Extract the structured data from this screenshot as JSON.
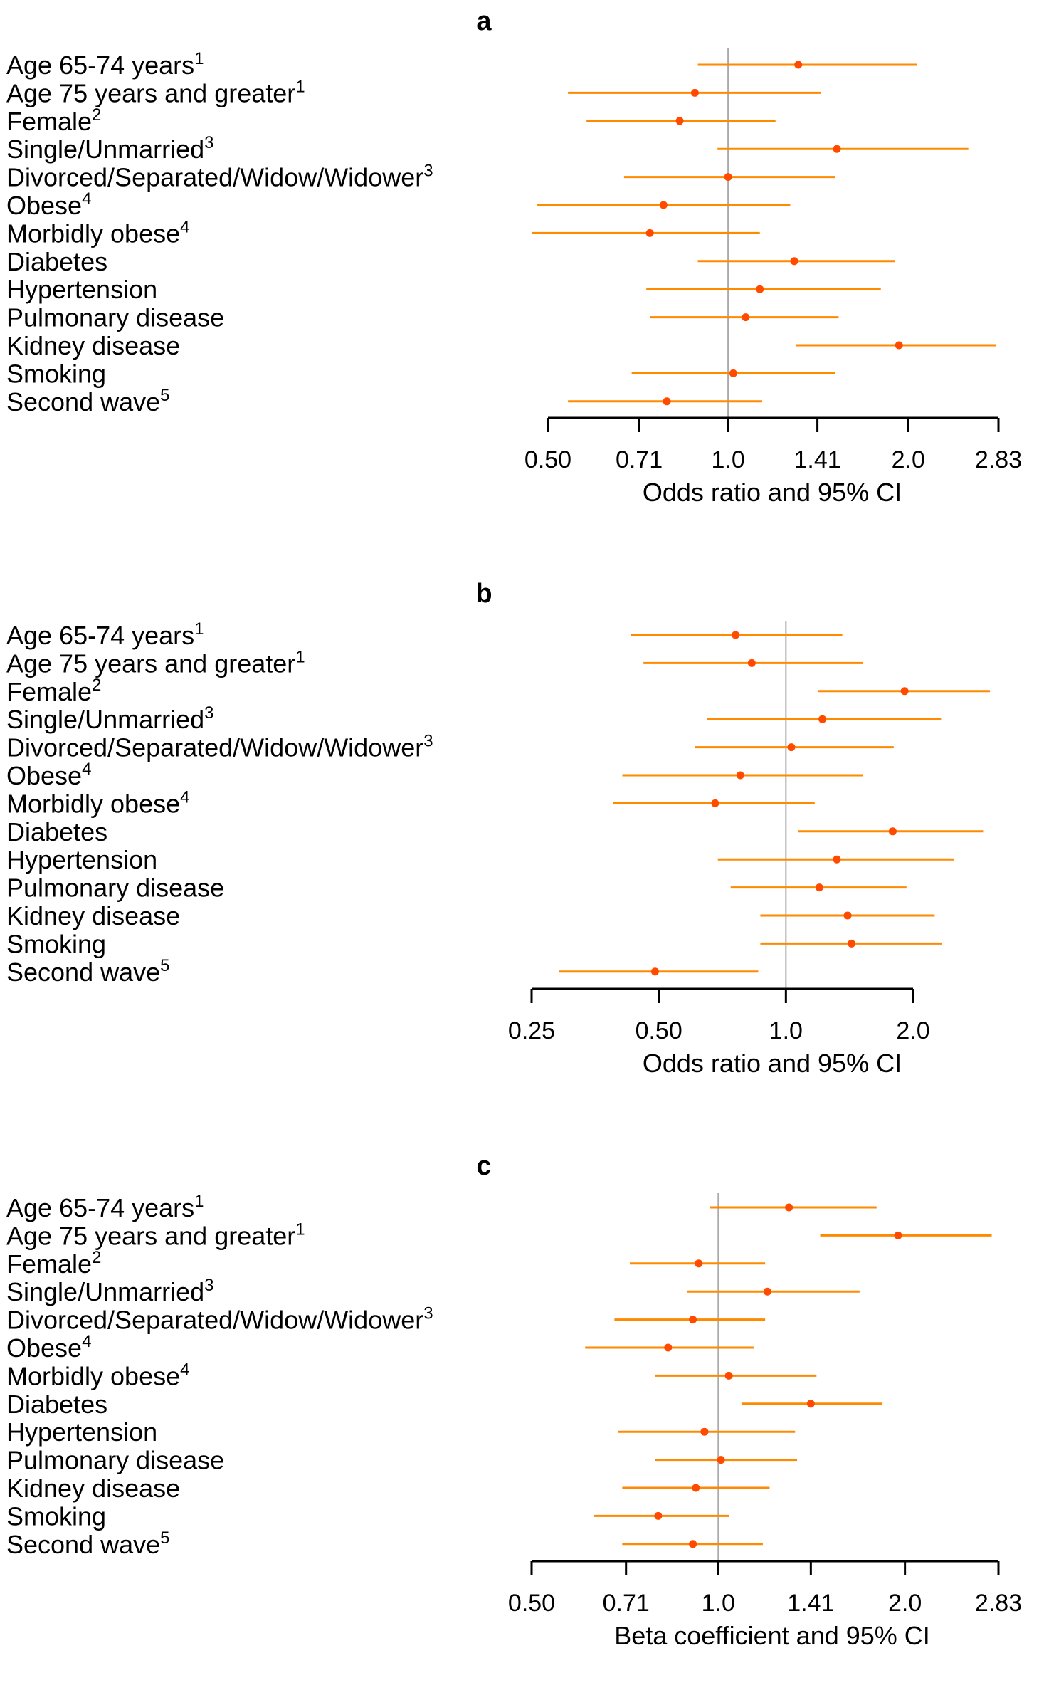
{
  "colors": {
    "ci": "#ff8a00",
    "point": "#ff4a00",
    "reference": "#aaaaaa",
    "axis": "#000000"
  },
  "chart_data": [
    {
      "panel": "a",
      "type": "scatter",
      "style": "forest-plot with 95% CI whiskers",
      "scale": "log2",
      "xlabel": "Odds ratio and 95% CI",
      "ticks": [
        0.5,
        0.71,
        1.0,
        1.41,
        2.0,
        2.83
      ],
      "tick_labels": [
        "0.50",
        "0.71",
        "1.0",
        "1.41",
        "2.0",
        "2.83"
      ],
      "xlim": [
        0.5,
        2.83
      ],
      "reference": 1.0,
      "rows": [
        {
          "label": "Age 65-74 years",
          "sup": "1",
          "estimate": 1.31,
          "lower": 0.89,
          "upper": 2.07
        },
        {
          "label": "Age 75 years and greater",
          "sup": "1",
          "estimate": 0.88,
          "lower": 0.54,
          "upper": 1.43
        },
        {
          "label": "Female",
          "sup": "2",
          "estimate": 0.83,
          "lower": 0.58,
          "upper": 1.2
        },
        {
          "label": "Single/Unmarried",
          "sup": "3",
          "estimate": 1.52,
          "lower": 0.96,
          "upper": 2.52
        },
        {
          "label": "Divorced/Separated/Widow/Widower",
          "sup": "3",
          "estimate": 1.0,
          "lower": 0.67,
          "upper": 1.51
        },
        {
          "label": "Obese",
          "sup": "4",
          "estimate": 0.78,
          "lower": 0.48,
          "upper": 1.27
        },
        {
          "label": "Morbidly obese",
          "sup": "4",
          "estimate": 0.74,
          "lower": 0.47,
          "upper": 1.13
        },
        {
          "label": "Diabetes",
          "sup": "",
          "estimate": 1.29,
          "lower": 0.89,
          "upper": 1.9
        },
        {
          "label": "Hypertension",
          "sup": "",
          "estimate": 1.13,
          "lower": 0.73,
          "upper": 1.8
        },
        {
          "label": "Pulmonary disease",
          "sup": "",
          "estimate": 1.07,
          "lower": 0.74,
          "upper": 1.53
        },
        {
          "label": "Kidney disease",
          "sup": "",
          "estimate": 1.93,
          "lower": 1.3,
          "upper": 2.8
        },
        {
          "label": "Smoking",
          "sup": "",
          "estimate": 1.02,
          "lower": 0.69,
          "upper": 1.51
        },
        {
          "label": "Second wave",
          "sup": "5",
          "estimate": 0.79,
          "lower": 0.54,
          "upper": 1.14
        }
      ]
    },
    {
      "panel": "b",
      "type": "scatter",
      "style": "forest-plot with 95% CI whiskers",
      "scale": "log2",
      "xlabel": "Odds ratio and 95% CI",
      "ticks": [
        0.25,
        0.5,
        1.0,
        2.0
      ],
      "tick_labels": [
        "0.25",
        "0.50",
        "1.0",
        "2.0"
      ],
      "xlim": [
        0.25,
        2.0
      ],
      "reference": 1.0,
      "rows": [
        {
          "label": "Age 65-74 years",
          "sup": "1",
          "estimate": 0.76,
          "lower": 0.43,
          "upper": 1.36
        },
        {
          "label": "Age 75 years and greater",
          "sup": "1",
          "estimate": 0.83,
          "lower": 0.46,
          "upper": 1.52
        },
        {
          "label": "Female",
          "sup": "2",
          "estimate": 1.91,
          "lower": 1.19,
          "upper": 3.04
        },
        {
          "label": "Single/Unmarried",
          "sup": "3",
          "estimate": 1.22,
          "lower": 0.65,
          "upper": 2.33
        },
        {
          "label": "Divorced/Separated/Widow/Widower",
          "sup": "3",
          "estimate": 1.03,
          "lower": 0.61,
          "upper": 1.8
        },
        {
          "label": "Obese",
          "sup": "4",
          "estimate": 0.78,
          "lower": 0.41,
          "upper": 1.52
        },
        {
          "label": "Morbidly obese",
          "sup": "4",
          "estimate": 0.68,
          "lower": 0.39,
          "upper": 1.17
        },
        {
          "label": "Diabetes",
          "sup": "",
          "estimate": 1.79,
          "lower": 1.07,
          "upper": 2.93
        },
        {
          "label": "Hypertension",
          "sup": "",
          "estimate": 1.32,
          "lower": 0.69,
          "upper": 2.5
        },
        {
          "label": "Pulmonary disease",
          "sup": "",
          "estimate": 1.2,
          "lower": 0.74,
          "upper": 1.93
        },
        {
          "label": "Kidney disease",
          "sup": "",
          "estimate": 1.4,
          "lower": 0.87,
          "upper": 2.25
        },
        {
          "label": "Smoking",
          "sup": "",
          "estimate": 1.43,
          "lower": 0.87,
          "upper": 2.34
        },
        {
          "label": "Second wave",
          "sup": "5",
          "estimate": 0.49,
          "lower": 0.29,
          "upper": 0.86
        }
      ]
    },
    {
      "panel": "c",
      "type": "scatter",
      "style": "forest-plot with 95% CI whiskers",
      "scale": "log2",
      "xlabel": "Beta coefficient and 95% CI",
      "ticks": [
        0.5,
        0.71,
        1.0,
        1.41,
        2.0,
        2.83
      ],
      "tick_labels": [
        "0.50",
        "0.71",
        "1.0",
        "1.41",
        "2.0",
        "2.83"
      ],
      "xlim": [
        0.5,
        2.83
      ],
      "reference": 1.0,
      "rows": [
        {
          "label": "Age 65-74 years",
          "sup": "1",
          "estimate": 1.3,
          "lower": 0.97,
          "upper": 1.8
        },
        {
          "label": "Age 75 years and greater",
          "sup": "1",
          "estimate": 1.95,
          "lower": 1.46,
          "upper": 2.76
        },
        {
          "label": "Female",
          "sup": "2",
          "estimate": 0.93,
          "lower": 0.72,
          "upper": 1.19
        },
        {
          "label": "Single/Unmarried",
          "sup": "3",
          "estimate": 1.2,
          "lower": 0.89,
          "upper": 1.69
        },
        {
          "label": "Divorced/Separated/Widow/Widower",
          "sup": "3",
          "estimate": 0.91,
          "lower": 0.68,
          "upper": 1.19
        },
        {
          "label": "Obese",
          "sup": "4",
          "estimate": 0.83,
          "lower": 0.61,
          "upper": 1.14
        },
        {
          "label": "Morbidly obese",
          "sup": "4",
          "estimate": 1.04,
          "lower": 0.79,
          "upper": 1.44
        },
        {
          "label": "Diabetes",
          "sup": "",
          "estimate": 1.41,
          "lower": 1.09,
          "upper": 1.84
        },
        {
          "label": "Hypertension",
          "sup": "",
          "estimate": 0.95,
          "lower": 0.69,
          "upper": 1.33
        },
        {
          "label": "Pulmonary disease",
          "sup": "",
          "estimate": 1.01,
          "lower": 0.79,
          "upper": 1.34
        },
        {
          "label": "Kidney disease",
          "sup": "",
          "estimate": 0.92,
          "lower": 0.7,
          "upper": 1.21
        },
        {
          "label": "Smoking",
          "sup": "",
          "estimate": 0.8,
          "lower": 0.63,
          "upper": 1.04
        },
        {
          "label": "Second wave",
          "sup": "5",
          "estimate": 0.91,
          "lower": 0.7,
          "upper": 1.18
        }
      ]
    }
  ]
}
